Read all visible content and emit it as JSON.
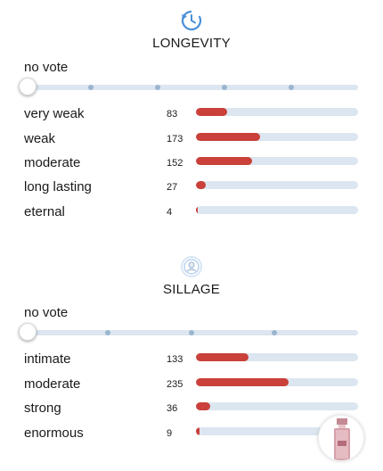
{
  "longevity": {
    "title": "LONGEVITY",
    "icon": "clock-history-icon",
    "no_vote_label": "no vote",
    "slider_value": 0,
    "rows": [
      {
        "label": "very weak",
        "count": "83"
      },
      {
        "label": "weak",
        "count": "173"
      },
      {
        "label": "moderate",
        "count": "152"
      },
      {
        "label": "long lasting",
        "count": "27"
      },
      {
        "label": "eternal",
        "count": "4"
      }
    ]
  },
  "sillage": {
    "title": "SILLAGE",
    "icon": "sillage-icon",
    "no_vote_label": "no vote",
    "slider_value": 0,
    "rows": [
      {
        "label": "intimate",
        "count": "133"
      },
      {
        "label": "moderate",
        "count": "235"
      },
      {
        "label": "strong",
        "count": "36"
      },
      {
        "label": "enormous",
        "count": "9"
      }
    ]
  },
  "colors": {
    "bar_fill": "#c9413a",
    "bar_track": "#dce6f0",
    "icon_blue": "#4a8fd6"
  },
  "thumbnail": {
    "icon": "perfume-bottle-thumbnail"
  }
}
